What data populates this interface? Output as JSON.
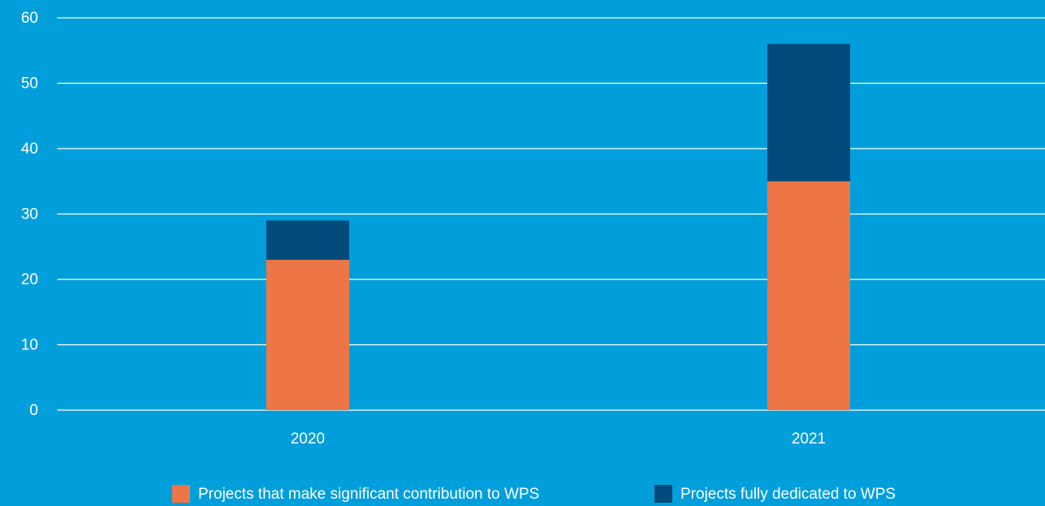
{
  "chart_data": {
    "type": "stacked_bar",
    "categories": [
      "2020",
      "2021"
    ],
    "series": [
      {
        "name": "Projects that make significant contribution to WPS",
        "color": "#ee7646",
        "values": [
          23,
          35
        ]
      },
      {
        "name": "Projects fully dedicated to WPS",
        "color": "#004a7c",
        "values": [
          6,
          21
        ]
      }
    ],
    "ylim": [
      0,
      60
    ],
    "yticks": [
      0,
      10,
      20,
      30,
      40,
      50,
      60
    ],
    "grid": true,
    "legend": "bottom"
  }
}
